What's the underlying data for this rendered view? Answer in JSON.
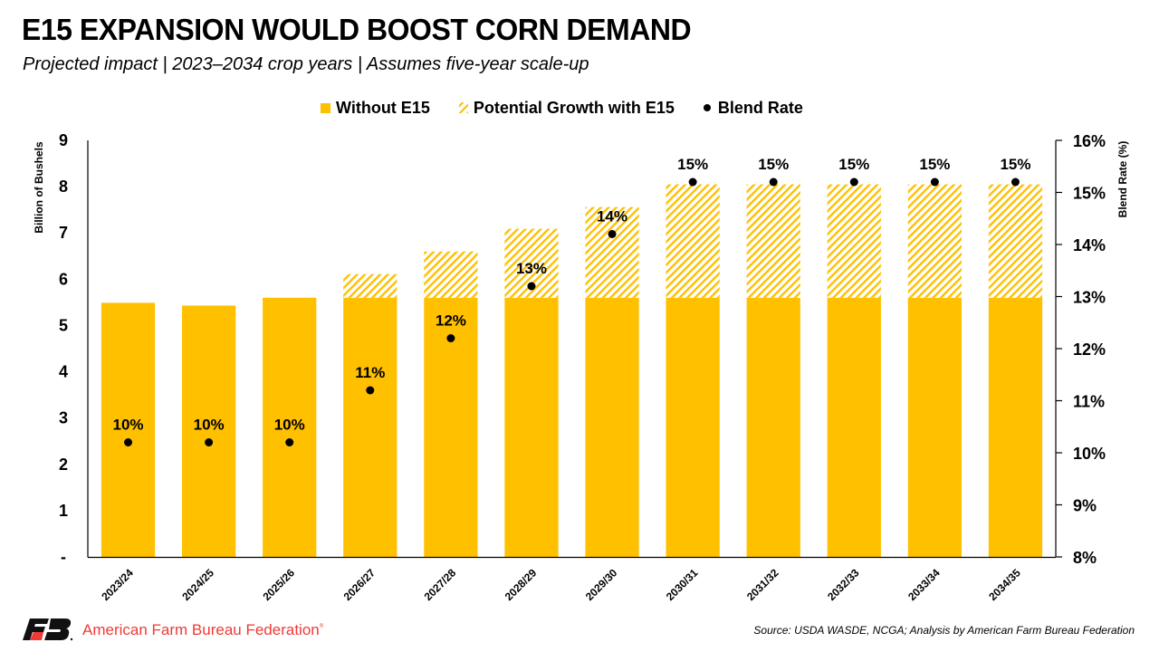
{
  "header": {
    "title": "E15 EXPANSION WOULD BOOST CORN DEMAND",
    "subtitle": "Projected impact | 2023–2034 crop years | Assumes five-year scale-up"
  },
  "legend": {
    "items": [
      {
        "label": "Without E15",
        "icon": "solid-square"
      },
      {
        "label": "Potential Growth with E15",
        "icon": "hatched-square"
      },
      {
        "label": "Blend Rate",
        "icon": "dot"
      }
    ]
  },
  "footer": {
    "org_name": "American Farm Bureau Federation",
    "registered_mark": "®",
    "logo": "afbf-logo-icon",
    "source": "Source: USDA WASDE, NCGA; Analysis by American Farm Bureau Federation"
  },
  "colors": {
    "bar": "#FFC000",
    "dot": "#000000",
    "brand_red": "#EE3A36"
  },
  "chart_data": {
    "type": "bar",
    "title": "E15 EXPANSION WOULD BOOST CORN DEMAND",
    "subtitle": "Projected impact | 2023–2034 crop years | Assumes five-year scale-up",
    "xlabel": "",
    "ylabel": "Billion of Bushels",
    "y2label": "Blend Rate (%)",
    "ylim": [
      0,
      9
    ],
    "y2lim": [
      8,
      16
    ],
    "yticks": [
      "-",
      "1",
      "2",
      "3",
      "4",
      "5",
      "6",
      "7",
      "8",
      "9"
    ],
    "y2ticks": [
      "8%",
      "9%",
      "10%",
      "11%",
      "12%",
      "13%",
      "14%",
      "15%",
      "16%"
    ],
    "grid": false,
    "legend_position": "top",
    "stacked": true,
    "categories": [
      "2023/24",
      "2024/25",
      "2025/26",
      "2026/27",
      "2027/28",
      "2028/29",
      "2029/30",
      "2030/31",
      "2031/32",
      "2032/33",
      "2033/34",
      "2034/35"
    ],
    "series": [
      {
        "name": "Without E15",
        "type": "bar",
        "axis": "left",
        "style": "solid",
        "values": [
          5.49,
          5.43,
          5.6,
          5.6,
          5.6,
          5.6,
          5.6,
          5.6,
          5.6,
          5.6,
          5.6,
          5.6
        ]
      },
      {
        "name": "Potential Growth with E15",
        "type": "bar",
        "axis": "left",
        "style": "hatched",
        "values": [
          0,
          0,
          0,
          0.51,
          1.0,
          1.49,
          1.96,
          2.45,
          2.45,
          2.45,
          2.45,
          2.45
        ]
      },
      {
        "name": "Blend Rate",
        "type": "scatter",
        "axis": "right",
        "unit": "%",
        "values": [
          10.2,
          10.2,
          10.2,
          11.2,
          12.2,
          13.2,
          14.2,
          15.2,
          15.2,
          15.2,
          15.2,
          15.2
        ],
        "data_labels": [
          "10%",
          "10%",
          "10%",
          "11%",
          "12%",
          "13%",
          "14%",
          "15%",
          "15%",
          "15%",
          "15%",
          "15%"
        ]
      }
    ]
  }
}
